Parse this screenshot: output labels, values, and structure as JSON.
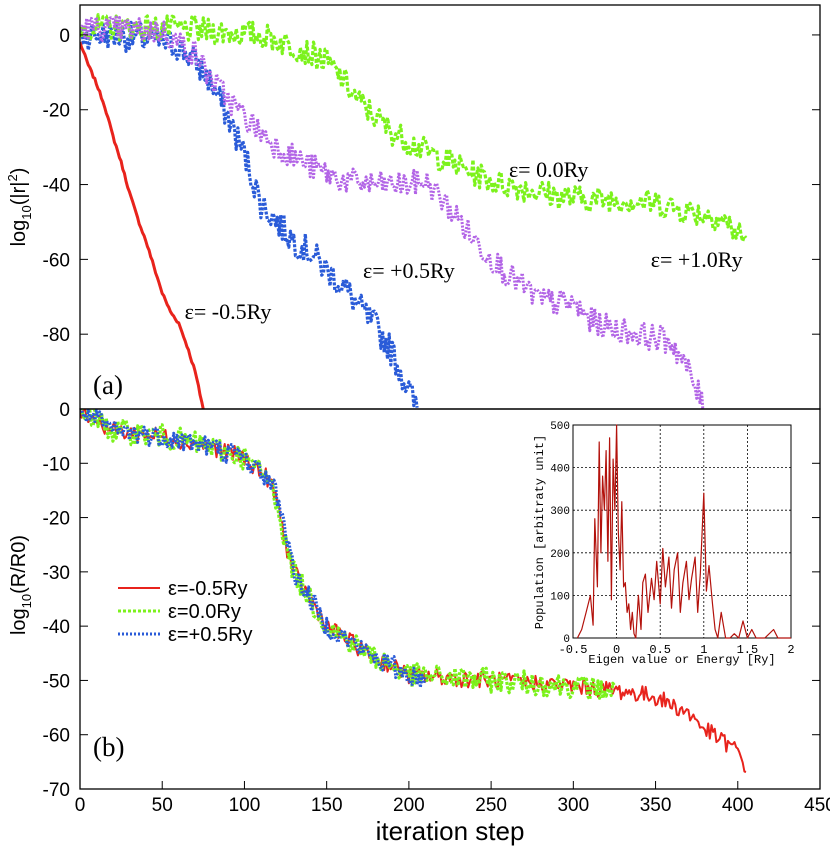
{
  "colors": {
    "red": "#e8231c",
    "green": "#7cf21c",
    "blue": "#2a5bd8",
    "purple": "#b264e6",
    "inset": "#b3120c"
  },
  "chart_data": [
    {
      "id": "a",
      "type": "line",
      "panel_label": "(a)",
      "ylabel_prefix": "log",
      "ylabel_sub": "10",
      "ylabel_suffix": "(|r|",
      "ylabel_sup": "2",
      "ylabel_end": ")",
      "xlim": [
        0,
        450
      ],
      "ylim": [
        -100,
        8
      ],
      "yticks": [
        0,
        -20,
        -40,
        -60,
        -80
      ],
      "ytick_labels": [
        "0",
        "-20",
        "-40",
        "-60",
        "-80"
      ],
      "series": [
        {
          "name": "ε= -0.5Ry",
          "color": "#e8231c",
          "noise": 0.4,
          "x": [
            0,
            5,
            10,
            15,
            20,
            25,
            30,
            35,
            40,
            45,
            50,
            55,
            60,
            65,
            70,
            73,
            75
          ],
          "y": [
            -2,
            -8,
            -13,
            -19,
            -27,
            -34,
            -42,
            -49,
            -55,
            -62,
            -69,
            -74,
            -77,
            -83,
            -90,
            -96,
            -100
          ]
        },
        {
          "name": "ε= +0.5Ry",
          "color": "#2a5bd8",
          "noise": 4,
          "x": [
            0,
            20,
            40,
            60,
            70,
            80,
            90,
            100,
            110,
            120,
            130,
            140,
            150,
            160,
            170,
            180,
            190,
            200,
            205
          ],
          "y": [
            0,
            0,
            -1,
            -3,
            -7,
            -13,
            -22,
            -32,
            -45,
            -50,
            -55,
            -58,
            -63,
            -67,
            -73,
            -78,
            -85,
            -95,
            -100
          ]
        },
        {
          "name": "ε= 0.0Ry",
          "color": "#7cf21c",
          "noise": 3.5,
          "x": [
            0,
            40,
            80,
            110,
            130,
            150,
            160,
            170,
            190,
            210,
            230,
            250,
            270,
            290,
            310,
            330,
            350,
            370,
            390,
            405
          ],
          "y": [
            2,
            2,
            1,
            0,
            -3,
            -7,
            -12,
            -18,
            -26,
            -31,
            -35,
            -39,
            -41,
            -43,
            -44,
            -44,
            -45,
            -47,
            -49,
            -55
          ]
        },
        {
          "name": "ε= +1.0Ry",
          "color": "#b264e6",
          "noise": 3.5,
          "x": [
            0,
            50,
            60,
            70,
            80,
            100,
            120,
            140,
            160,
            180,
            200,
            210,
            220,
            230,
            240,
            260,
            280,
            300,
            310,
            320,
            340,
            360,
            370,
            380
          ],
          "y": [
            2,
            1,
            -2,
            -5,
            -12,
            -22,
            -30,
            -35,
            -39,
            -40,
            -40,
            -39,
            -44,
            -49,
            -55,
            -64,
            -71,
            -72,
            -76,
            -78,
            -80,
            -82,
            -90,
            -100
          ]
        }
      ],
      "annotations": [
        {
          "text": "ε= -0.5Ry",
          "x": 90,
          "y": -76
        },
        {
          "text": "ε= +0.5Ry",
          "x": 200,
          "y": -65
        },
        {
          "text": "ε= 0.0Ry",
          "x": 285,
          "y": -38
        },
        {
          "text": "ε= +1.0Ry",
          "x": 375,
          "y": -62
        }
      ]
    },
    {
      "id": "b",
      "type": "line",
      "panel_label": "(b)",
      "ylabel_prefix": "log",
      "ylabel_sub": "10",
      "ylabel_suffix": "(R/R0)",
      "xlabel": "iteration step",
      "xlim": [
        0,
        450
      ],
      "ylim": [
        -70,
        0
      ],
      "xticks": [
        0,
        50,
        100,
        150,
        200,
        250,
        300,
        350,
        400,
        450
      ],
      "xtick_labels": [
        "0",
        "50",
        "100",
        "150",
        "200",
        "250",
        "300",
        "350",
        "400",
        "450"
      ],
      "yticks": [
        0,
        -10,
        -20,
        -30,
        -40,
        -50,
        -60,
        -70
      ],
      "ytick_labels": [
        "0",
        "-10",
        "-20",
        "-30",
        "-40",
        "-50",
        "-60",
        "-70"
      ],
      "legend_position": "left-middle",
      "series": [
        {
          "name": "ε=-0.5Ry",
          "color": "#e8231c",
          "noise": 1.6,
          "x": [
            0,
            20,
            50,
            80,
            100,
            115,
            120,
            125,
            130,
            140,
            150,
            175,
            200,
            250,
            300,
            330,
            350,
            370,
            380,
            390,
            400,
            405
          ],
          "y": [
            0,
            -4,
            -5,
            -7,
            -9,
            -13,
            -17,
            -25,
            -30,
            -35,
            -40,
            -45,
            -49,
            -50,
            -51,
            -52,
            -53,
            -56,
            -59,
            -61,
            -63,
            -66
          ]
        },
        {
          "name": "ε=0.0Ry",
          "color": "#7cf21c",
          "noise": 2.2,
          "x": [
            0,
            20,
            50,
            80,
            100,
            115,
            120,
            125,
            130,
            140,
            150,
            175,
            200,
            250,
            300,
            325
          ],
          "y": [
            0,
            -4,
            -5,
            -7,
            -9,
            -13,
            -17,
            -25,
            -30,
            -35,
            -40,
            -45,
            -49,
            -50,
            -51,
            -52
          ]
        },
        {
          "name": "ε=+0.5Ry",
          "color": "#2a5bd8",
          "noise": 2.0,
          "x": [
            0,
            20,
            50,
            80,
            100,
            115,
            120,
            125,
            130,
            140,
            150,
            175,
            200,
            210
          ],
          "y": [
            0,
            -4,
            -5,
            -7,
            -9,
            -13,
            -16,
            -22,
            -30,
            -35,
            -40,
            -45,
            -49,
            -50
          ]
        }
      ]
    },
    {
      "id": "inset",
      "type": "line",
      "xlabel": "Eigen value or Energy [Ry]",
      "ylabel": "Population [arbitraty unit]",
      "xlim": [
        -0.5,
        2
      ],
      "ylim": [
        0,
        500
      ],
      "xticks": [
        -0.5,
        0,
        0.5,
        1,
        1.5,
        2
      ],
      "xtick_labels": [
        "-0.5",
        "0",
        "0.5",
        "1",
        "1.5",
        "2"
      ],
      "yticks": [
        0,
        100,
        200,
        300,
        400,
        500
      ],
      "ytick_labels": [
        "0",
        "100",
        "200",
        "300",
        "400",
        "500"
      ],
      "grid": true,
      "series": [
        {
          "name": "population",
          "color": "#b3120c",
          "x": [
            -0.45,
            -0.4,
            -0.35,
            -0.3,
            -0.27,
            -0.25,
            -0.22,
            -0.2,
            -0.18,
            -0.16,
            -0.14,
            -0.12,
            -0.1,
            -0.08,
            -0.06,
            -0.04,
            -0.02,
            0,
            0.02,
            0.04,
            0.06,
            0.08,
            0.1,
            0.12,
            0.14,
            0.16,
            0.18,
            0.2,
            0.22,
            0.25,
            0.28,
            0.3,
            0.33,
            0.36,
            0.4,
            0.43,
            0.46,
            0.5,
            0.53,
            0.56,
            0.6,
            0.63,
            0.66,
            0.7,
            0.73,
            0.76,
            0.8,
            0.83,
            0.86,
            0.9,
            0.93,
            0.96,
            1.0,
            1.03,
            1.06,
            1.1,
            1.13,
            1.16,
            1.2,
            1.25,
            1.3,
            1.35,
            1.4,
            1.45,
            1.5,
            1.55,
            1.6,
            1.7,
            1.8,
            1.85,
            1.9,
            2.0
          ],
          "y": [
            0,
            20,
            60,
            100,
            30,
            280,
            120,
            460,
            200,
            380,
            300,
            440,
            180,
            470,
            90,
            420,
            300,
            500,
            250,
            160,
            320,
            120,
            130,
            60,
            80,
            20,
            60,
            10,
            0,
            100,
            20,
            130,
            150,
            60,
            140,
            90,
            180,
            80,
            210,
            120,
            190,
            70,
            160,
            200,
            60,
            130,
            180,
            90,
            140,
            190,
            60,
            150,
            340,
            110,
            170,
            80,
            20,
            0,
            60,
            0,
            0,
            10,
            0,
            40,
            0,
            20,
            0,
            0,
            20,
            0,
            0,
            0
          ]
        }
      ]
    }
  ]
}
